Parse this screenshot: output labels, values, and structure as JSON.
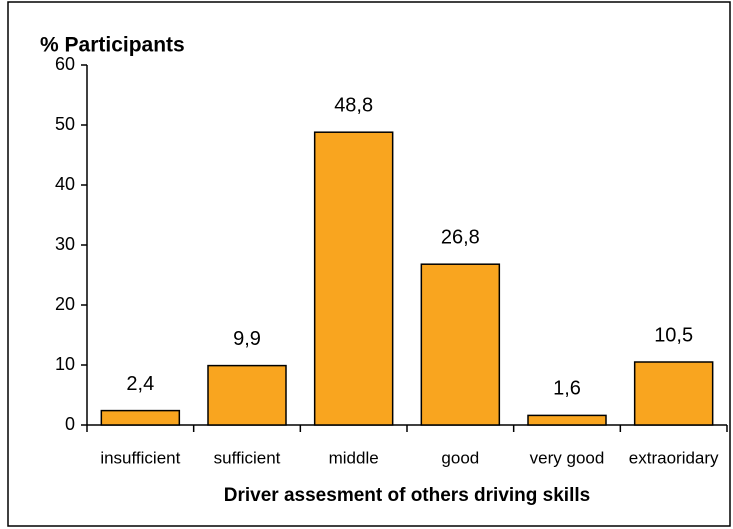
{
  "chart_data": {
    "type": "bar",
    "y_label": "% Participants",
    "x_label": "Driver assesment of others driving skills",
    "categories": [
      "insufficient",
      "sufficient",
      "middle",
      "good",
      "very good",
      "extraoridary"
    ],
    "values": [
      2.4,
      9.9,
      48.8,
      26.8,
      1.6,
      10.5
    ],
    "value_labels": [
      "2,4",
      "9,9",
      "48,8",
      "26,8",
      "1,6",
      "10,5"
    ],
    "color": "#f9a51f",
    "ylim": [
      0,
      60
    ],
    "yticks": [
      0,
      10,
      20,
      30,
      40,
      50,
      60
    ],
    "grid": false
  }
}
